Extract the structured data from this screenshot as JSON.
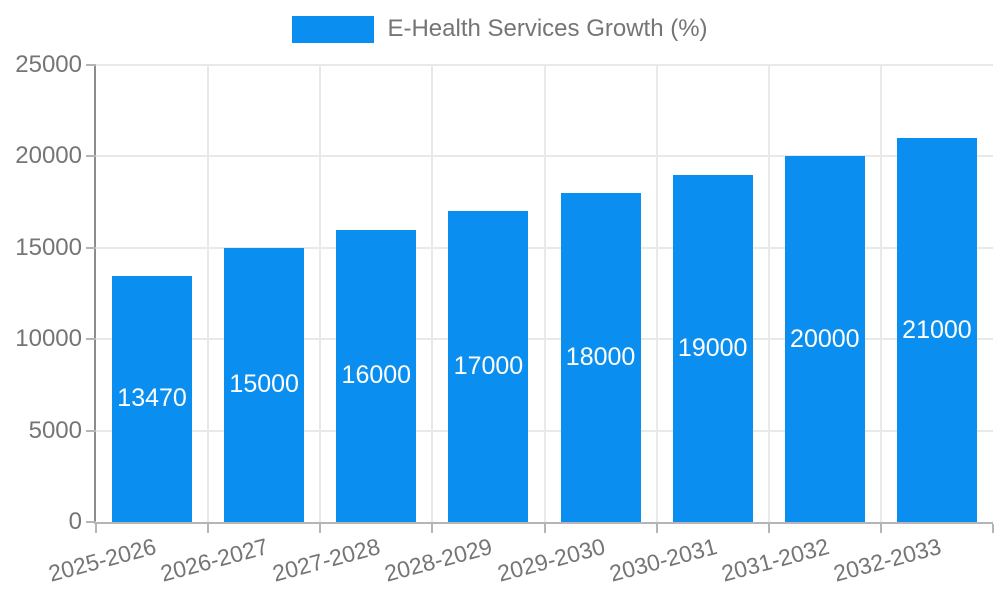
{
  "colors": {
    "bar": "#0a8ff0",
    "grid": "#e9e9e9",
    "axis_y": "#8c8c8c",
    "axis_x": "#b5b5b5",
    "tick_text": "#757575",
    "value_text": "#ffffff"
  },
  "chart_data": {
    "type": "bar",
    "title": "E-Health Services Growth (%)",
    "categories": [
      "2025-2026",
      "2026-2027",
      "2027-2028",
      "2028-2029",
      "2029-2030",
      "2030-2031",
      "2031-2032",
      "2032-2033"
    ],
    "values": [
      13470,
      15000,
      16000,
      17000,
      18000,
      19000,
      20000,
      21000
    ],
    "xlabel": "",
    "ylabel": "",
    "ylim": [
      0,
      25000
    ],
    "yticks": [
      0,
      5000,
      10000,
      15000,
      20000,
      25000
    ],
    "grid": true,
    "legend_position": "top-center",
    "value_label_position": "inside-center",
    "x_tick_rotation_deg": -15
  }
}
